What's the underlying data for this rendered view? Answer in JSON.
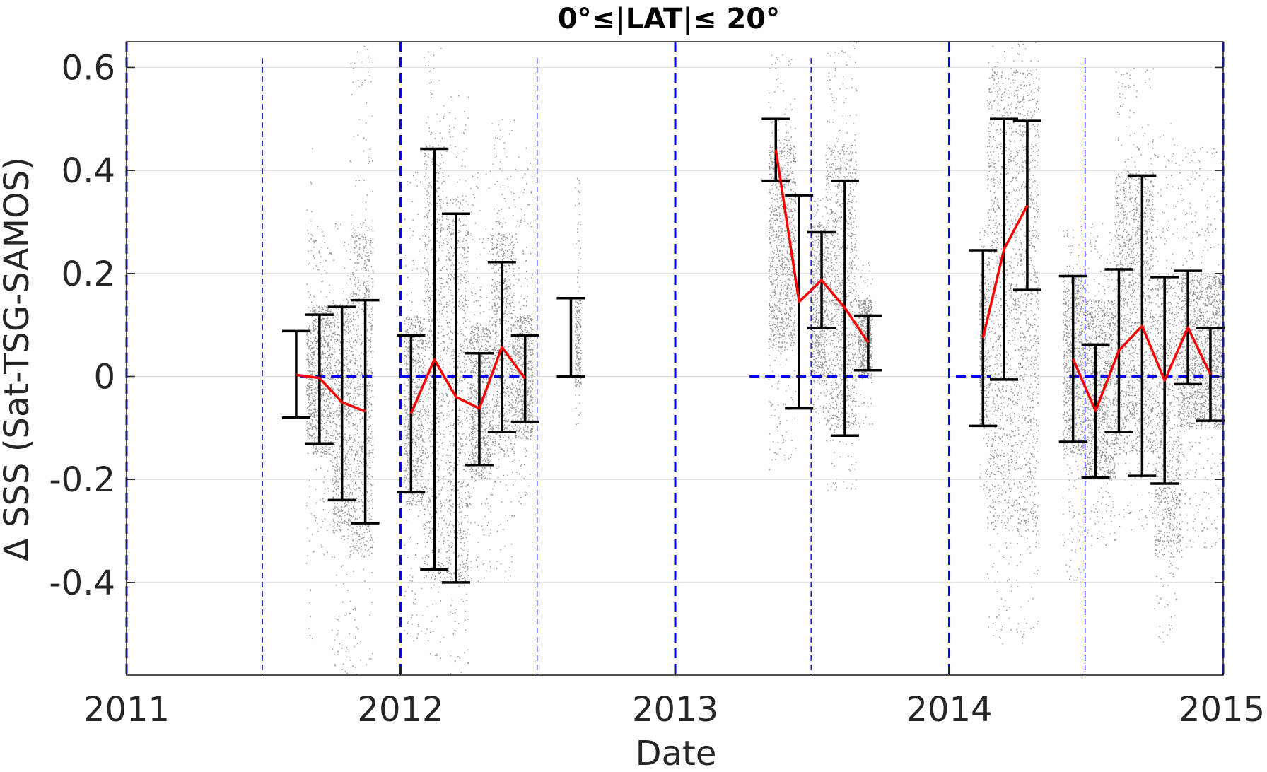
{
  "chart_data": {
    "type": "scatter",
    "title": "0°≤|LAT|≤ 20°",
    "xlabel": "Date",
    "ylabel": "Δ SSS (Sat-TSG-SAMOS)",
    "xlim": [
      "2011-01-01",
      "2015-01-01"
    ],
    "ylim": [
      -0.58,
      0.65
    ],
    "x_ticks": [
      {
        "date": "2011-01-01",
        "label": "2011"
      },
      {
        "date": "2012-01-01",
        "label": "2012"
      },
      {
        "date": "2013-01-01",
        "label": "2013"
      },
      {
        "date": "2014-01-01",
        "label": "2014"
      },
      {
        "date": "2015-01-01",
        "label": "2015"
      }
    ],
    "y_ticks": [
      {
        "value": 0.6,
        "label": "0.6"
      },
      {
        "value": 0.4,
        "label": "0.4"
      },
      {
        "value": 0.2,
        "label": "0.2"
      },
      {
        "value": 0,
        "label": "0"
      },
      {
        "value": -0.2,
        "label": "-0.2"
      },
      {
        "value": -0.4,
        "label": "-0.4"
      }
    ],
    "grid": "horizontal",
    "colors": {
      "scatter": "#808080",
      "mean_line": "#ff0000",
      "error_bar": "#000000",
      "reference": "#0000ff",
      "grid": "#dcdcdc",
      "axis": "#262626"
    },
    "year_boundaries": [
      "2011-01-01",
      "2012-01-01",
      "2013-01-01",
      "2014-01-01",
      "2015-01-01"
    ],
    "half_year_markers": [
      "2011-07-01",
      "2012-07-01",
      "2013-07-01",
      "2014-07-01"
    ],
    "zero_reference_segments": [
      {
        "start": "2011-08-20",
        "end": "2011-12-01"
      },
      {
        "start": "2012-01-01",
        "end": "2012-06-10"
      },
      {
        "start": "2013-04-10",
        "end": "2013-09-20"
      },
      {
        "start": "2014-01-10",
        "end": "2014-02-25"
      },
      {
        "start": "2014-06-10",
        "end": "2014-12-31"
      }
    ],
    "monthly_stats": [
      {
        "date": "2011-08-15",
        "mean": 0.003,
        "upper": 0.088,
        "lower": -0.08
      },
      {
        "date": "2011-09-15",
        "mean": -0.003,
        "upper": 0.12,
        "lower": -0.13
      },
      {
        "date": "2011-10-15",
        "mean": -0.05,
        "upper": 0.135,
        "lower": -0.24
      },
      {
        "date": "2011-11-15",
        "mean": -0.068,
        "upper": 0.148,
        "lower": -0.285
      },
      {
        "date": "2012-01-15",
        "mean": -0.072,
        "upper": 0.08,
        "lower": -0.225
      },
      {
        "date": "2012-02-15",
        "mean": 0.033,
        "upper": 0.442,
        "lower": -0.375
      },
      {
        "date": "2012-03-15",
        "mean": -0.04,
        "upper": 0.316,
        "lower": -0.4
      },
      {
        "date": "2012-04-15",
        "mean": -0.062,
        "upper": 0.045,
        "lower": -0.172
      },
      {
        "date": "2012-05-15",
        "mean": 0.057,
        "upper": 0.222,
        "lower": -0.108
      },
      {
        "date": "2012-06-15",
        "mean": -0.004,
        "upper": 0.08,
        "lower": -0.088
      },
      {
        "date": "2012-08-15",
        "mean": null,
        "upper": 0.152,
        "lower": 0.0
      },
      {
        "date": "2013-05-15",
        "mean": 0.44,
        "upper": 0.5,
        "lower": 0.38
      },
      {
        "date": "2013-06-15",
        "mean": 0.145,
        "upper": 0.352,
        "lower": -0.062
      },
      {
        "date": "2013-07-15",
        "mean": 0.187,
        "upper": 0.28,
        "lower": 0.094
      },
      {
        "date": "2013-08-15",
        "mean": 0.133,
        "upper": 0.38,
        "lower": -0.115
      },
      {
        "date": "2013-09-15",
        "mean": 0.066,
        "upper": 0.118,
        "lower": 0.012
      },
      {
        "date": "2014-02-15",
        "mean": 0.075,
        "upper": 0.245,
        "lower": -0.096
      },
      {
        "date": "2014-03-15",
        "mean": 0.247,
        "upper": 0.5,
        "lower": -0.006
      },
      {
        "date": "2014-04-15",
        "mean": 0.332,
        "upper": 0.496,
        "lower": 0.168
      },
      {
        "date": "2014-06-15",
        "mean": 0.034,
        "upper": 0.195,
        "lower": -0.127
      },
      {
        "date": "2014-07-15",
        "mean": -0.067,
        "upper": 0.062,
        "lower": -0.196
      },
      {
        "date": "2014-08-15",
        "mean": 0.05,
        "upper": 0.208,
        "lower": -0.108
      },
      {
        "date": "2014-09-15",
        "mean": 0.098,
        "upper": 0.39,
        "lower": -0.193
      },
      {
        "date": "2014-10-15",
        "mean": -0.008,
        "upper": 0.193,
        "lower": -0.208
      },
      {
        "date": "2014-11-15",
        "mean": 0.095,
        "upper": 0.205,
        "lower": -0.015
      },
      {
        "date": "2014-12-15",
        "mean": 0.004,
        "upper": 0.094,
        "lower": -0.086
      }
    ],
    "scatter_columns": [
      {
        "start": "2011-08-28",
        "end": "2011-09-05",
        "min": -0.52,
        "max": 0.48,
        "core_min": -0.12,
        "core_max": 0.1
      },
      {
        "start": "2011-09-05",
        "end": "2011-09-30",
        "min": -0.35,
        "max": 0.3,
        "core_min": -0.15,
        "core_max": 0.14
      },
      {
        "start": "2011-10-01",
        "end": "2011-10-25",
        "min": -0.58,
        "max": 0.3,
        "core_min": -0.3,
        "core_max": 0.15
      },
      {
        "start": "2011-10-25",
        "end": "2011-11-25",
        "min": -0.58,
        "max": 0.65,
        "core_min": -0.35,
        "core_max": 0.3
      },
      {
        "start": "2012-01-05",
        "end": "2012-01-31",
        "min": -0.52,
        "max": 0.4,
        "core_min": -0.25,
        "core_max": 0.12
      },
      {
        "start": "2012-02-01",
        "end": "2012-02-28",
        "min": -0.55,
        "max": 0.65,
        "core_min": -0.4,
        "core_max": 0.45
      },
      {
        "start": "2012-03-01",
        "end": "2012-03-31",
        "min": -0.58,
        "max": 0.55,
        "core_min": -0.4,
        "core_max": 0.35
      },
      {
        "start": "2012-04-01",
        "end": "2012-04-30",
        "min": -0.4,
        "max": 0.4,
        "core_min": -0.2,
        "core_max": 0.1
      },
      {
        "start": "2012-05-01",
        "end": "2012-05-31",
        "min": -0.4,
        "max": 0.5,
        "core_min": -0.15,
        "core_max": 0.28
      },
      {
        "start": "2012-06-01",
        "end": "2012-06-25",
        "min": -0.25,
        "max": 0.45,
        "core_min": -0.12,
        "core_max": 0.12
      },
      {
        "start": "2012-08-20",
        "end": "2012-08-28",
        "min": -0.1,
        "max": 0.4,
        "core_min": -0.02,
        "core_max": 0.15
      },
      {
        "start": "2013-05-05",
        "end": "2013-06-10",
        "min": -0.18,
        "max": 0.63,
        "core_min": 0.05,
        "core_max": 0.45
      },
      {
        "start": "2013-07-01",
        "end": "2013-07-20",
        "min": -0.1,
        "max": 0.35,
        "core_min": 0.0,
        "core_max": 0.3
      },
      {
        "start": "2013-07-20",
        "end": "2013-08-30",
        "min": -0.22,
        "max": 0.65,
        "core_min": -0.1,
        "core_max": 0.45
      },
      {
        "start": "2013-09-01",
        "end": "2013-09-20",
        "min": -0.1,
        "max": 0.25,
        "core_min": 0.0,
        "core_max": 0.15
      },
      {
        "start": "2014-02-10",
        "end": "2014-02-20",
        "min": -0.24,
        "max": 0.3,
        "core_min": -0.1,
        "core_max": 0.2
      },
      {
        "start": "2014-02-20",
        "end": "2014-04-30",
        "min": -0.52,
        "max": 0.65,
        "core_min": -0.3,
        "core_max": 0.6
      },
      {
        "start": "2014-06-01",
        "end": "2014-06-30",
        "min": -0.4,
        "max": 0.3,
        "core_min": -0.15,
        "core_max": 0.2
      },
      {
        "start": "2014-07-01",
        "end": "2014-08-10",
        "min": -0.33,
        "max": 0.3,
        "core_min": -0.2,
        "core_max": 0.15
      },
      {
        "start": "2014-08-10",
        "end": "2014-09-30",
        "min": -0.3,
        "max": 0.6,
        "core_min": -0.15,
        "core_max": 0.4
      },
      {
        "start": "2014-10-01",
        "end": "2014-11-05",
        "min": -0.52,
        "max": 0.5,
        "core_min": -0.35,
        "core_max": 0.2
      },
      {
        "start": "2014-11-05",
        "end": "2014-12-31",
        "min": -0.35,
        "max": 0.45,
        "core_min": -0.1,
        "core_max": 0.2
      }
    ]
  }
}
